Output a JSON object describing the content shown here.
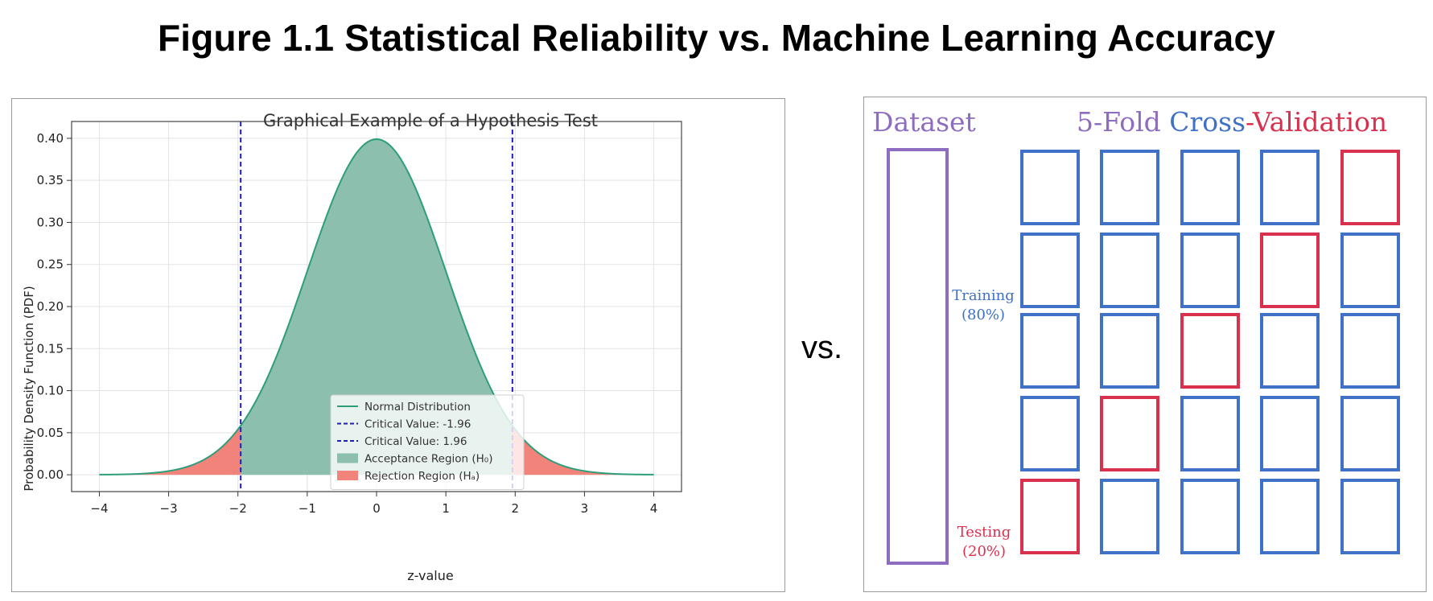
{
  "figure": {
    "title": "Figure 1.1 Statistical Reliability vs. Machine Learning Accuracy",
    "vs_label": "vs."
  },
  "chart_data": {
    "type": "area",
    "title": "Graphical Example of a Hypothesis Test",
    "xlabel": "z-value",
    "ylabel": "Probability Density Function (PDF)",
    "xlim": [
      -4.4,
      4.4
    ],
    "ylim": [
      -0.02,
      0.42
    ],
    "xticks": [
      -4,
      -3,
      -2,
      -1,
      0,
      1,
      2,
      3,
      4
    ],
    "xtick_labels": [
      "−4",
      "−3",
      "−2",
      "−1",
      "0",
      "1",
      "2",
      "3",
      "4"
    ],
    "yticks": [
      0.0,
      0.05,
      0.1,
      0.15,
      0.2,
      0.25,
      0.3,
      0.35,
      0.4
    ],
    "ytick_labels": [
      "0.00",
      "0.05",
      "0.10",
      "0.15",
      "0.20",
      "0.25",
      "0.30",
      "0.35",
      "0.40"
    ],
    "grid": true,
    "legend_position": "bottom-center",
    "curve": {
      "name": "Normal Distribution",
      "x_range": [
        -4,
        4
      ],
      "mean": 0,
      "std": 1,
      "color": "#2e9e7a"
    },
    "critical_values": [
      {
        "name": "Critical Value: -1.96",
        "x": -1.96,
        "color": "#1f1fbf"
      },
      {
        "name": "Critical Value: 1.96",
        "x": 1.96,
        "color": "#1f1fbf"
      }
    ],
    "regions": [
      {
        "name": "Acceptance Region (H₀)",
        "x_range": [
          -1.96,
          1.96
        ],
        "color": "#8dbfae"
      },
      {
        "name": "Rejection Region (Hₐ)",
        "x_range": [
          [
            -4,
            -1.96
          ],
          [
            1.96,
            4
          ]
        ],
        "color": "#f2837b"
      }
    ],
    "legend": [
      {
        "label": "Normal Distribution",
        "kind": "line",
        "color": "#2e9e7a"
      },
      {
        "label": "Critical Value: -1.96",
        "kind": "dashed",
        "color": "#1f1fbf"
      },
      {
        "label": "Critical Value: 1.96",
        "kind": "dashed",
        "color": "#1f1fbf"
      },
      {
        "label": "Acceptance Region (H₀)",
        "kind": "patch",
        "color": "#8dbfae"
      },
      {
        "label": "Rejection Region (Hₐ)",
        "kind": "patch",
        "color": "#f2837b"
      }
    ]
  },
  "cross_validation": {
    "dataset_label": "Dataset",
    "title_part1": "5-Fold ",
    "title_part2": "Cross",
    "title_part3": "-Validation",
    "training_label": "Training",
    "training_pct": "(80%)",
    "testing_label": "Testing",
    "testing_pct": "(20%)",
    "folds": 5,
    "test_fold_per_row": [
      4,
      3,
      2,
      1,
      0
    ],
    "colors": {
      "dataset": "#8e6cbf",
      "training": "#3f72c6",
      "testing": "#d9304e"
    }
  }
}
